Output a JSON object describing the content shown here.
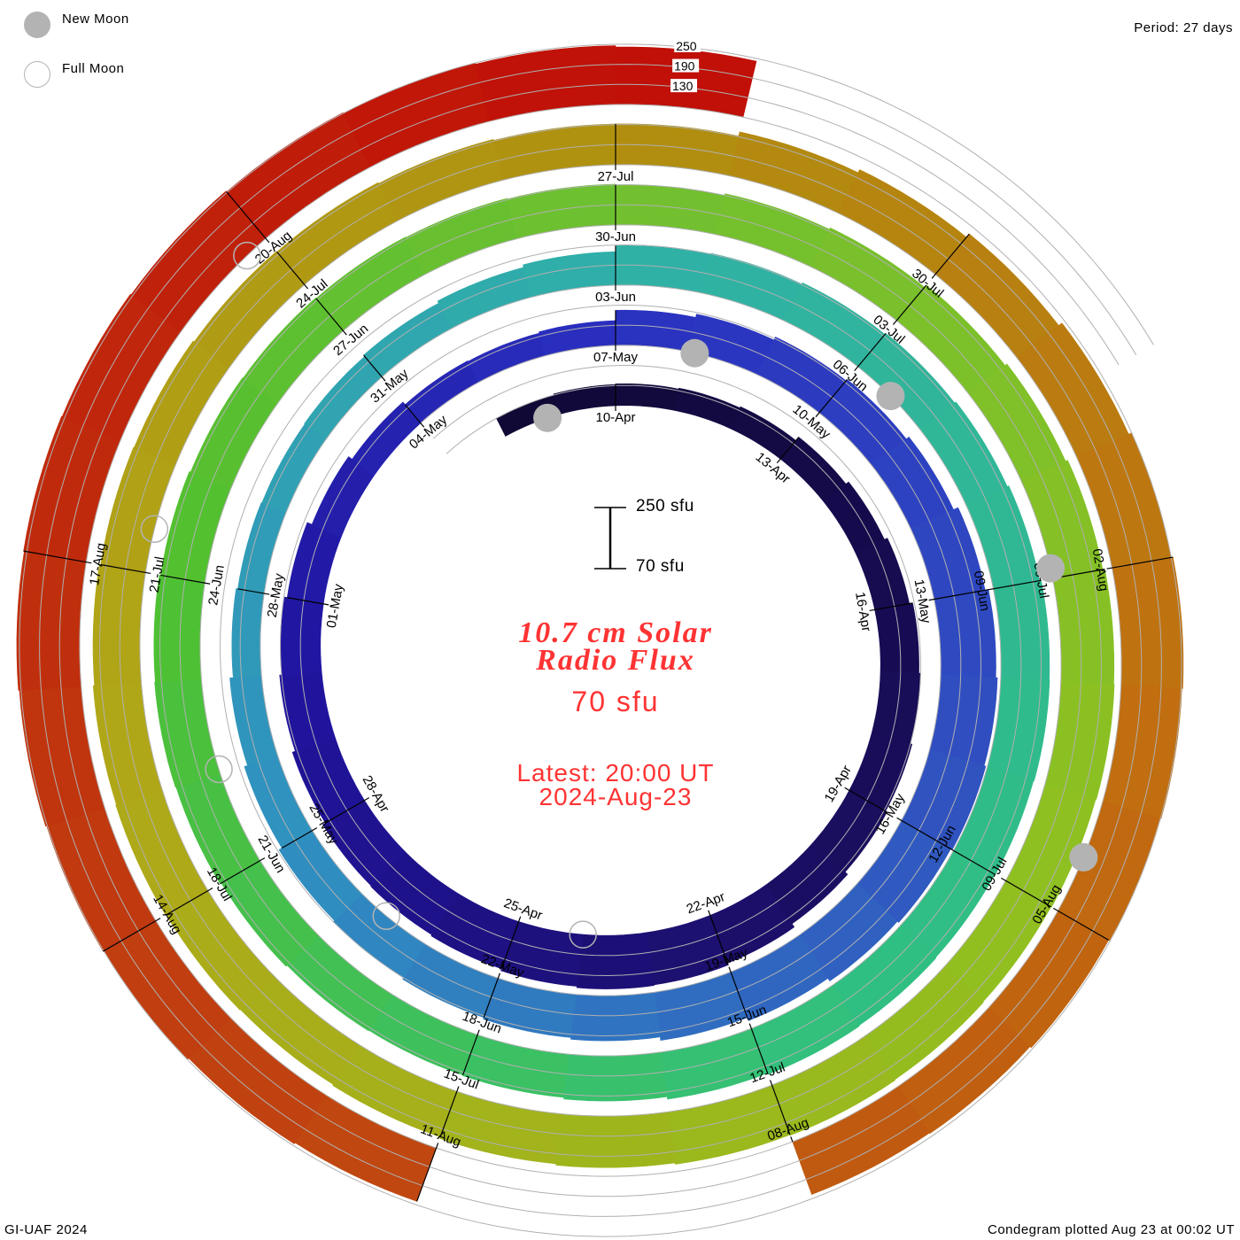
{
  "legend": {
    "new_moon": "New Moon",
    "full_moon": "Full Moon"
  },
  "period": "Period: 27 days",
  "footer_left": "GI-UAF 2024",
  "footer_right": "Condegram plotted Aug 23 at 00:02 UT",
  "scale": {
    "top": "250 sfu",
    "bottom": "70 sfu"
  },
  "title_line1": "10.7 cm Solar",
  "title_line2": "Radio Flux",
  "current_value": "70 sfu",
  "latest_line1": "Latest: 20:00 UT",
  "latest_line2": "2024-Aug-23",
  "colors": {
    "title": "#ff3333",
    "moon": "#b3b3b3",
    "grid": "#b0b0b0"
  },
  "chart_data": {
    "type": "condegram-spiral",
    "title": "10.7 cm Solar Radio Flux",
    "units": "sfu",
    "period_days": 27,
    "baseline_sfu": 70,
    "scale_max_sfu": 250,
    "first_day_offset": -2,
    "reference_date": "10-Apr-2024",
    "daily_flux": [
      130,
      133,
      135,
      138,
      142,
      155,
      165,
      175,
      185,
      190,
      195,
      200,
      210,
      222,
      228,
      230,
      226,
      220,
      216,
      214,
      205,
      196,
      190,
      180,
      165,
      152,
      142,
      140,
      144,
      175,
      185,
      195,
      200,
      210,
      225,
      235,
      240,
      245,
      240,
      235,
      225,
      215,
      205,
      200,
      195,
      190,
      185,
      175,
      165,
      155,
      150,
      148,
      150,
      155,
      162,
      170,
      188,
      192,
      196,
      200,
      205,
      210,
      215,
      216,
      214,
      212,
      214,
      216,
      212,
      205,
      200,
      198,
      200,
      204,
      208,
      210,
      208,
      204,
      200,
      198,
      196,
      194,
      192,
      190,
      195,
      200,
      208,
      215,
      222,
      228,
      230,
      228,
      226,
      228,
      230,
      228,
      224,
      220,
      215,
      212,
      214,
      216,
      214,
      210,
      206,
      204,
      200,
      198,
      195,
      192,
      192,
      205,
      215,
      228,
      240,
      250,
      255,
      252,
      248,
      245,
      240,
      238,
      null,
      null,
      null,
      240,
      244,
      248,
      252,
      255,
      258,
      260,
      258,
      255,
      252,
      250,
      246,
      242
    ],
    "level_labels": [
      "250",
      "190",
      "130"
    ],
    "level_values": [
      250,
      190,
      130
    ],
    "date_labels": [
      "10-Apr",
      "13-Apr",
      "16-Apr",
      "19-Apr",
      "22-Apr",
      "25-Apr",
      "28-Apr",
      "01-May",
      "04-May",
      "07-May",
      "10-May",
      "13-May",
      "16-May",
      "19-May",
      "22-May",
      "25-May",
      "28-May",
      "31-May",
      "03-Jun",
      "06-Jun",
      "09-Jun",
      "12-Jun",
      "15-Jun",
      "18-Jun",
      "21-Jun",
      "24-Jun",
      "27-Jun",
      "30-Jun",
      "03-Jul",
      "06-Jul",
      "09-Jul",
      "12-Jul",
      "15-Jul",
      "18-Jul",
      "21-Jul",
      "24-Jul",
      "27-Jul",
      "30-Jul",
      "02-Aug",
      "05-Aug",
      "08-Aug",
      "11-Aug",
      "14-Aug",
      "17-Aug",
      "20-Aug"
    ],
    "date_label_step_days": 3,
    "new_moon_days": [
      -1.2,
      28.1,
      57.5,
      86.9,
      116.5
    ],
    "full_moon_days": [
      14.0,
      43.6,
      73.05,
      102.4,
      131.8
    ],
    "color_stops": [
      {
        "day": -3,
        "color": "#0f0830"
      },
      {
        "day": 10,
        "color": "#1a0e60"
      },
      {
        "day": 20,
        "color": "#2014a0"
      },
      {
        "day": 27,
        "color": "#2a30c0"
      },
      {
        "day": 35,
        "color": "#3050c0"
      },
      {
        "day": 45,
        "color": "#3090c0"
      },
      {
        "day": 54,
        "color": "#30b0a8"
      },
      {
        "day": 65,
        "color": "#30c080"
      },
      {
        "day": 75,
        "color": "#50c030"
      },
      {
        "day": 81,
        "color": "#70c030"
      },
      {
        "day": 90,
        "color": "#90c020"
      },
      {
        "day": 100,
        "color": "#b0a818"
      },
      {
        "day": 108,
        "color": "#b09010"
      },
      {
        "day": 115,
        "color": "#c07010"
      },
      {
        "day": 125,
        "color": "#c04010"
      },
      {
        "day": 135,
        "color": "#c01008"
      }
    ]
  }
}
